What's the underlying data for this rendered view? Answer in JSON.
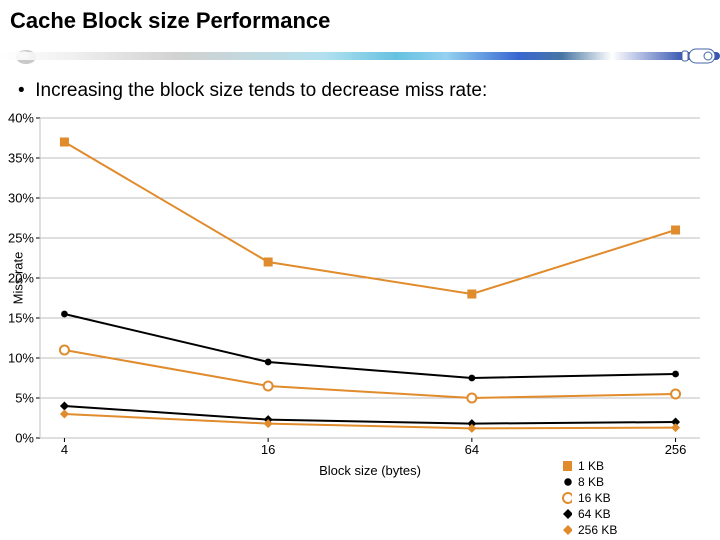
{
  "slide": {
    "title": "Cache Block size Performance",
    "title_fontsize": 22,
    "bullet": "Increasing the block size tends to decrease miss rate:",
    "bullet_fontsize": 19
  },
  "chart": {
    "type": "line",
    "ylabel": "Miss rate",
    "xlabel": "Block size (bytes)",
    "label_fontsize": 13,
    "tick_fontsize": 13,
    "background_color": "#ffffff",
    "grid_color": "#bfbfbf",
    "grid_width": 1,
    "x_categories": [
      "4",
      "16",
      "64",
      "256"
    ],
    "x_positions": [
      0,
      1,
      2,
      3
    ],
    "xlim": [
      -0.12,
      3.12
    ],
    "ylim": [
      0,
      40
    ],
    "ytick_step": 5,
    "ytick_labels": [
      "0%",
      "5%",
      "10%",
      "15%",
      "20%",
      "25%",
      "30%",
      "35%",
      "40%"
    ],
    "line_width": 2,
    "marker_size": 9,
    "series": [
      {
        "name": "1 KB",
        "marker": "square",
        "color": "#e08b2c",
        "values": [
          37,
          22,
          18,
          26
        ]
      },
      {
        "name": "8 KB",
        "marker": "dot",
        "color": "#000000",
        "values": [
          15.5,
          9.5,
          7.5,
          8
        ]
      },
      {
        "name": "16 KB",
        "marker": "circle",
        "color": "#e08b2c",
        "values": [
          11,
          6.5,
          5,
          5.5
        ]
      },
      {
        "name": "64 KB",
        "marker": "diamond",
        "color": "#000000",
        "values": [
          4,
          2.3,
          1.8,
          2
        ]
      },
      {
        "name": "256 KB",
        "marker": "diamond",
        "color": "#e08b2c",
        "values": [
          3,
          1.8,
          1.2,
          1.3
        ]
      }
    ]
  },
  "legend": {
    "items": [
      {
        "label": "1 KB",
        "marker": "square",
        "color": "#e08b2c"
      },
      {
        "label": "8 KB",
        "marker": "dot",
        "color": "#000000"
      },
      {
        "label": "16 KB",
        "marker": "circle",
        "color": "#e08b2c"
      },
      {
        "label": "64 KB",
        "marker": "diamond",
        "color": "#000000"
      },
      {
        "label": "256 KB",
        "marker": "diamond",
        "color": "#e08b2c"
      }
    ]
  },
  "colors": {
    "text": "#000000",
    "divider_gradient": [
      "#eeeeee",
      "#55bbdd",
      "#2244aa"
    ]
  }
}
